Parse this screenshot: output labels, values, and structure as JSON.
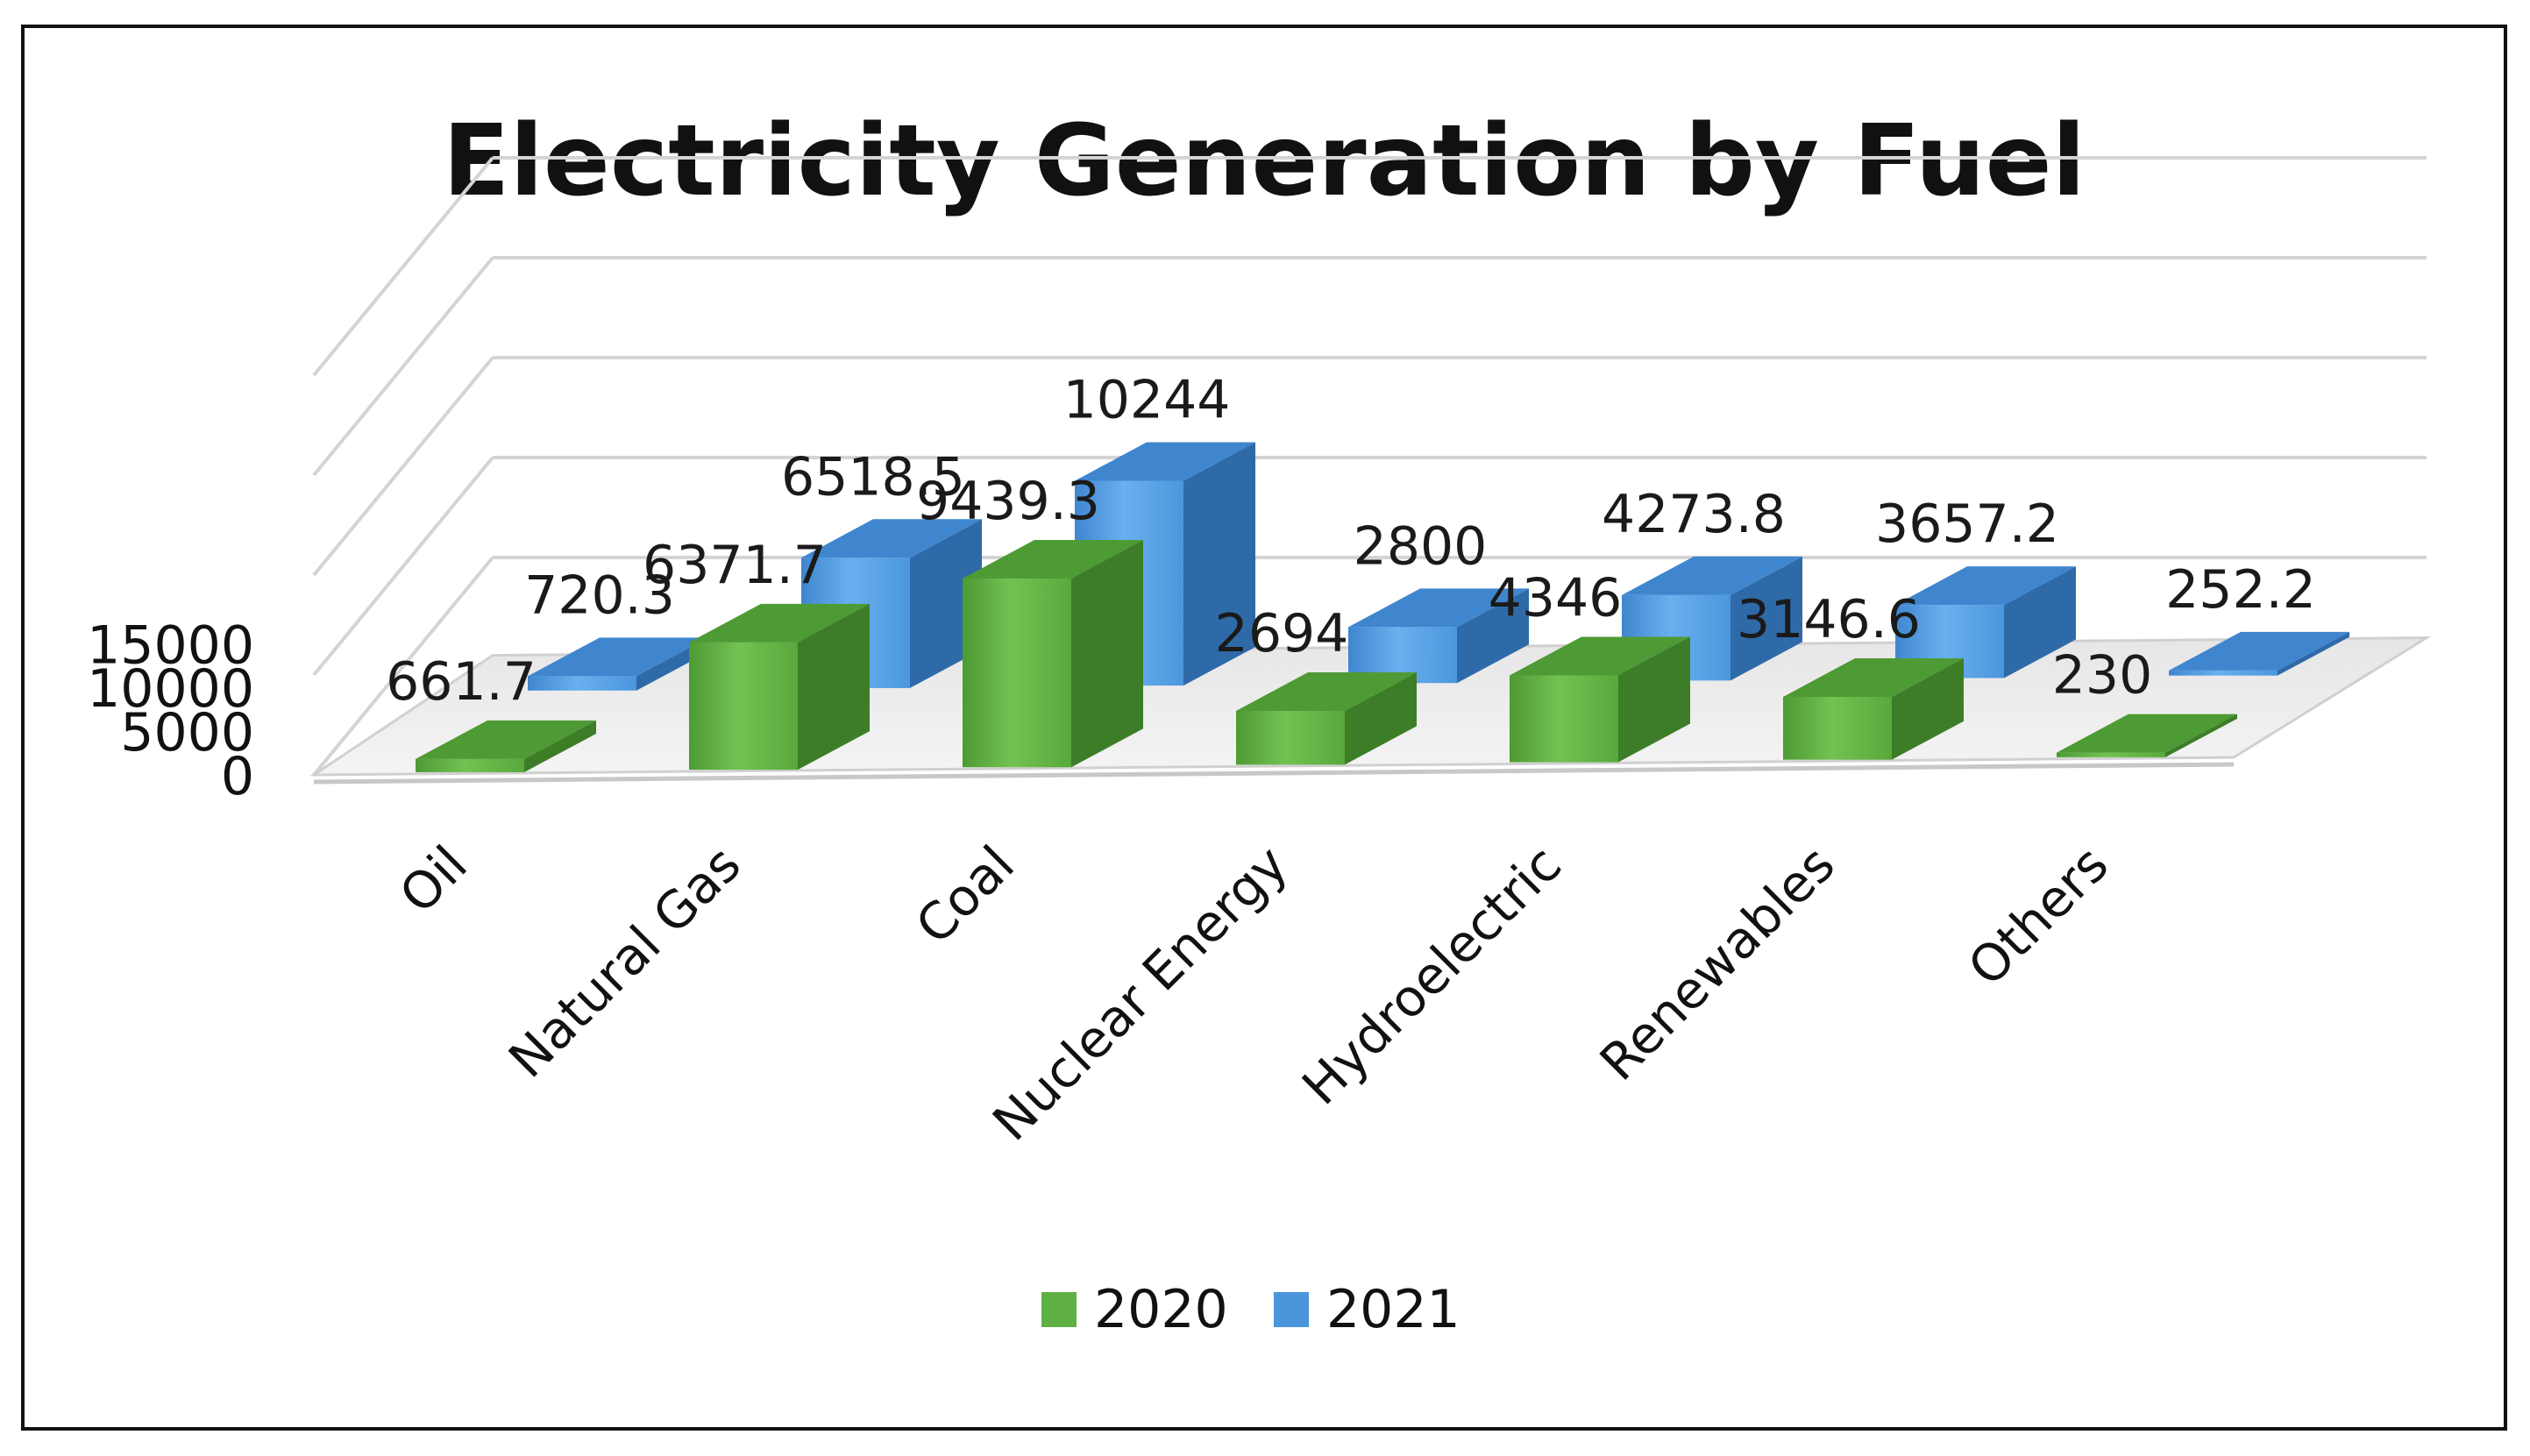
{
  "chart_data": {
    "type": "bar",
    "title": "Electricity Generation by Fuel",
    "categories": [
      "Oil",
      "Natural Gas",
      "Coal",
      "Nuclear Energy",
      "Hydroelectric",
      "Renewables",
      "Others"
    ],
    "series": [
      {
        "name": "2020",
        "values": [
          661.7,
          6371.7,
          9439.3,
          2694,
          4346,
          3146.6,
          230
        ],
        "labels": [
          "661.7",
          "6371.7",
          "9439.3",
          "2694",
          "4346",
          "3146.6",
          "230"
        ],
        "color": "#5fb042"
      },
      {
        "name": "2021",
        "values": [
          720.3,
          6518.5,
          10244,
          2800,
          4273.8,
          3657.2,
          252.2
        ],
        "labels": [
          "720.3",
          "6518.5",
          "10244",
          "2800",
          "4273.8",
          "3657.2",
          "252.2"
        ],
        "color": "#4a95dc"
      }
    ],
    "yticks": [
      0,
      5000,
      10000,
      15000
    ],
    "ytick_labels": [
      "0",
      "5000",
      "10000",
      "15000"
    ],
    "ylim": [
      0,
      20000
    ],
    "xlabel": "",
    "ylabel": "",
    "grid": true,
    "legend_position": "bottom",
    "style": "3d-clustered-column"
  }
}
